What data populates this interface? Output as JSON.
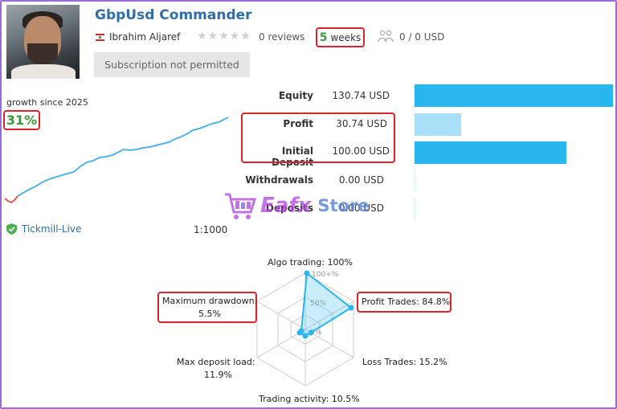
{
  "header": {
    "title": "GbpUsd Commander",
    "author": "Ibrahim Aljaref",
    "stars": "★★★★★",
    "reviews": "0 reviews",
    "weeks_num": "5",
    "weeks_text": "weeks",
    "subscribers": "0 / 0 USD",
    "subscription_button": "Subscription not permitted",
    "icons": [
      "lebanon-flag-icon",
      "star-icon",
      "people-icon"
    ]
  },
  "growth": {
    "label": "growth since 2025",
    "value": "31%",
    "broker": "Tickmill-Live",
    "leverage": "1:1000"
  },
  "metrics": [
    {
      "label": "Equity",
      "value": "130.74 USD",
      "fraction": 1.0,
      "color": "#29b6ee"
    },
    {
      "label": "Profit",
      "value": "30.74 USD",
      "fraction": 0.235,
      "color": "#a9dff7"
    },
    {
      "label": "Initial Deposit",
      "value": "100.00 USD",
      "fraction": 0.765,
      "color": "#29b6ee"
    },
    {
      "label": "Withdrawals",
      "value": "0.00 USD",
      "fraction": 0,
      "color": "#29b6ee"
    },
    {
      "label": "Deposits",
      "value": "0.00 USD",
      "fraction": 0,
      "color": "#29b6ee"
    }
  ],
  "watermark": {
    "brand": "Eafx",
    "suffix": "Store"
  },
  "radar": {
    "algo": "Algo trading: 100%",
    "profit_trades": "Profit Trades: 84.8%",
    "loss_trades": "Loss Trades: 15.2%",
    "activity": "Trading activity: 10.5%",
    "max_load_title": "Max deposit load:",
    "max_load_value": "11.9%",
    "drawdown_title": "Maximum drawdown:",
    "drawdown_value": "5.5%",
    "ring_100": "100+%",
    "ring_50": "50%",
    "ring_0": "0%"
  },
  "colors": {
    "accent": "#2f6ea8",
    "green": "#3a9a3a",
    "highlight": "#d9252b",
    "bar": "#29b6ee"
  }
}
